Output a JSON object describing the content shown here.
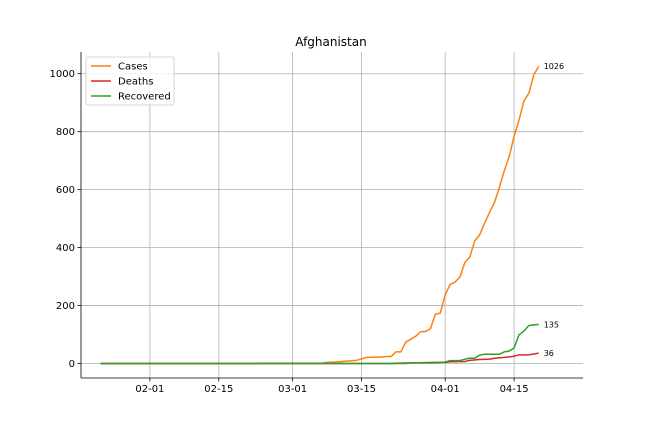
{
  "chart_data": {
    "type": "line",
    "title": "Afghanistan",
    "xlabel": "",
    "ylabel": "",
    "x_range": [
      "2020-01-22",
      "2020-04-23"
    ],
    "xlim": [
      "2020-01-18",
      "2020-04-29"
    ],
    "ylim": [
      -50,
      1075
    ],
    "x_ticks": [
      "2020-02-01",
      "2020-02-15",
      "2020-03-01",
      "2020-03-15",
      "2020-04-01",
      "2020-04-15"
    ],
    "x_tick_labels": [
      "02-01",
      "02-15",
      "03-01",
      "03-15",
      "04-01",
      "04-15"
    ],
    "y_ticks": [
      0,
      200,
      400,
      600,
      800,
      1000
    ],
    "y_tick_labels": [
      "0",
      "200",
      "400",
      "600",
      "800",
      "1000"
    ],
    "grid": true,
    "legend_position": "upper-left",
    "series": [
      {
        "name": "Cases",
        "color": "#ff7f0e",
        "points": [
          [
            "2020-01-22",
            0
          ],
          [
            "2020-02-23",
            0
          ],
          [
            "2020-02-24",
            1
          ],
          [
            "2020-03-07",
            1
          ],
          [
            "2020-03-08",
            4
          ],
          [
            "2020-03-10",
            5
          ],
          [
            "2020-03-11",
            7
          ],
          [
            "2020-03-14",
            11
          ],
          [
            "2020-03-15",
            16
          ],
          [
            "2020-03-16",
            21
          ],
          [
            "2020-03-18",
            22
          ],
          [
            "2020-03-19",
            22
          ],
          [
            "2020-03-20",
            24
          ],
          [
            "2020-03-21",
            24
          ],
          [
            "2020-03-22",
            40
          ],
          [
            "2020-03-23",
            40
          ],
          [
            "2020-03-24",
            74
          ],
          [
            "2020-03-25",
            84
          ],
          [
            "2020-03-26",
            94
          ],
          [
            "2020-03-27",
            110
          ],
          [
            "2020-03-28",
            110
          ],
          [
            "2020-03-29",
            120
          ],
          [
            "2020-03-30",
            170
          ],
          [
            "2020-03-31",
            174
          ],
          [
            "2020-04-01",
            237
          ],
          [
            "2020-04-02",
            273
          ],
          [
            "2020-04-03",
            281
          ],
          [
            "2020-04-04",
            299
          ],
          [
            "2020-04-05",
            349
          ],
          [
            "2020-04-06",
            367
          ],
          [
            "2020-04-07",
            423
          ],
          [
            "2020-04-08",
            444
          ],
          [
            "2020-04-09",
            484
          ],
          [
            "2020-04-10",
            521
          ],
          [
            "2020-04-11",
            555
          ],
          [
            "2020-04-12",
            607
          ],
          [
            "2020-04-13",
            665
          ],
          [
            "2020-04-14",
            714
          ],
          [
            "2020-04-15",
            784
          ],
          [
            "2020-04-16",
            840
          ],
          [
            "2020-04-17",
            906
          ],
          [
            "2020-04-18",
            933
          ],
          [
            "2020-04-19",
            996
          ],
          [
            "2020-04-20",
            1026
          ]
        ],
        "end_label": "1026"
      },
      {
        "name": "Deaths",
        "color": "#d62728",
        "points": [
          [
            "2020-01-22",
            0
          ],
          [
            "2020-03-21",
            0
          ],
          [
            "2020-03-22",
            1
          ],
          [
            "2020-03-30",
            4
          ],
          [
            "2020-04-01",
            4
          ],
          [
            "2020-04-02",
            6
          ],
          [
            "2020-04-05",
            7
          ],
          [
            "2020-04-06",
            11
          ],
          [
            "2020-04-08",
            14
          ],
          [
            "2020-04-10",
            15
          ],
          [
            "2020-04-11",
            18
          ],
          [
            "2020-04-13",
            21
          ],
          [
            "2020-04-14",
            23
          ],
          [
            "2020-04-15",
            25
          ],
          [
            "2020-04-16",
            30
          ],
          [
            "2020-04-18",
            30
          ],
          [
            "2020-04-19",
            33
          ],
          [
            "2020-04-20",
            36
          ]
        ],
        "end_label": "36"
      },
      {
        "name": "Recovered",
        "color": "#2ca02c",
        "points": [
          [
            "2020-01-22",
            0
          ],
          [
            "2020-03-24",
            0
          ],
          [
            "2020-03-25",
            2
          ],
          [
            "2020-03-30",
            2
          ],
          [
            "2020-04-01",
            5
          ],
          [
            "2020-04-02",
            10
          ],
          [
            "2020-04-04",
            10
          ],
          [
            "2020-04-05",
            15
          ],
          [
            "2020-04-06",
            18
          ],
          [
            "2020-04-07",
            18
          ],
          [
            "2020-04-08",
            29
          ],
          [
            "2020-04-09",
            32
          ],
          [
            "2020-04-12",
            32
          ],
          [
            "2020-04-13",
            40
          ],
          [
            "2020-04-14",
            43
          ],
          [
            "2020-04-15",
            54
          ],
          [
            "2020-04-16",
            99
          ],
          [
            "2020-04-17",
            112
          ],
          [
            "2020-04-18",
            131
          ],
          [
            "2020-04-20",
            135
          ]
        ],
        "end_label": "135"
      }
    ]
  }
}
